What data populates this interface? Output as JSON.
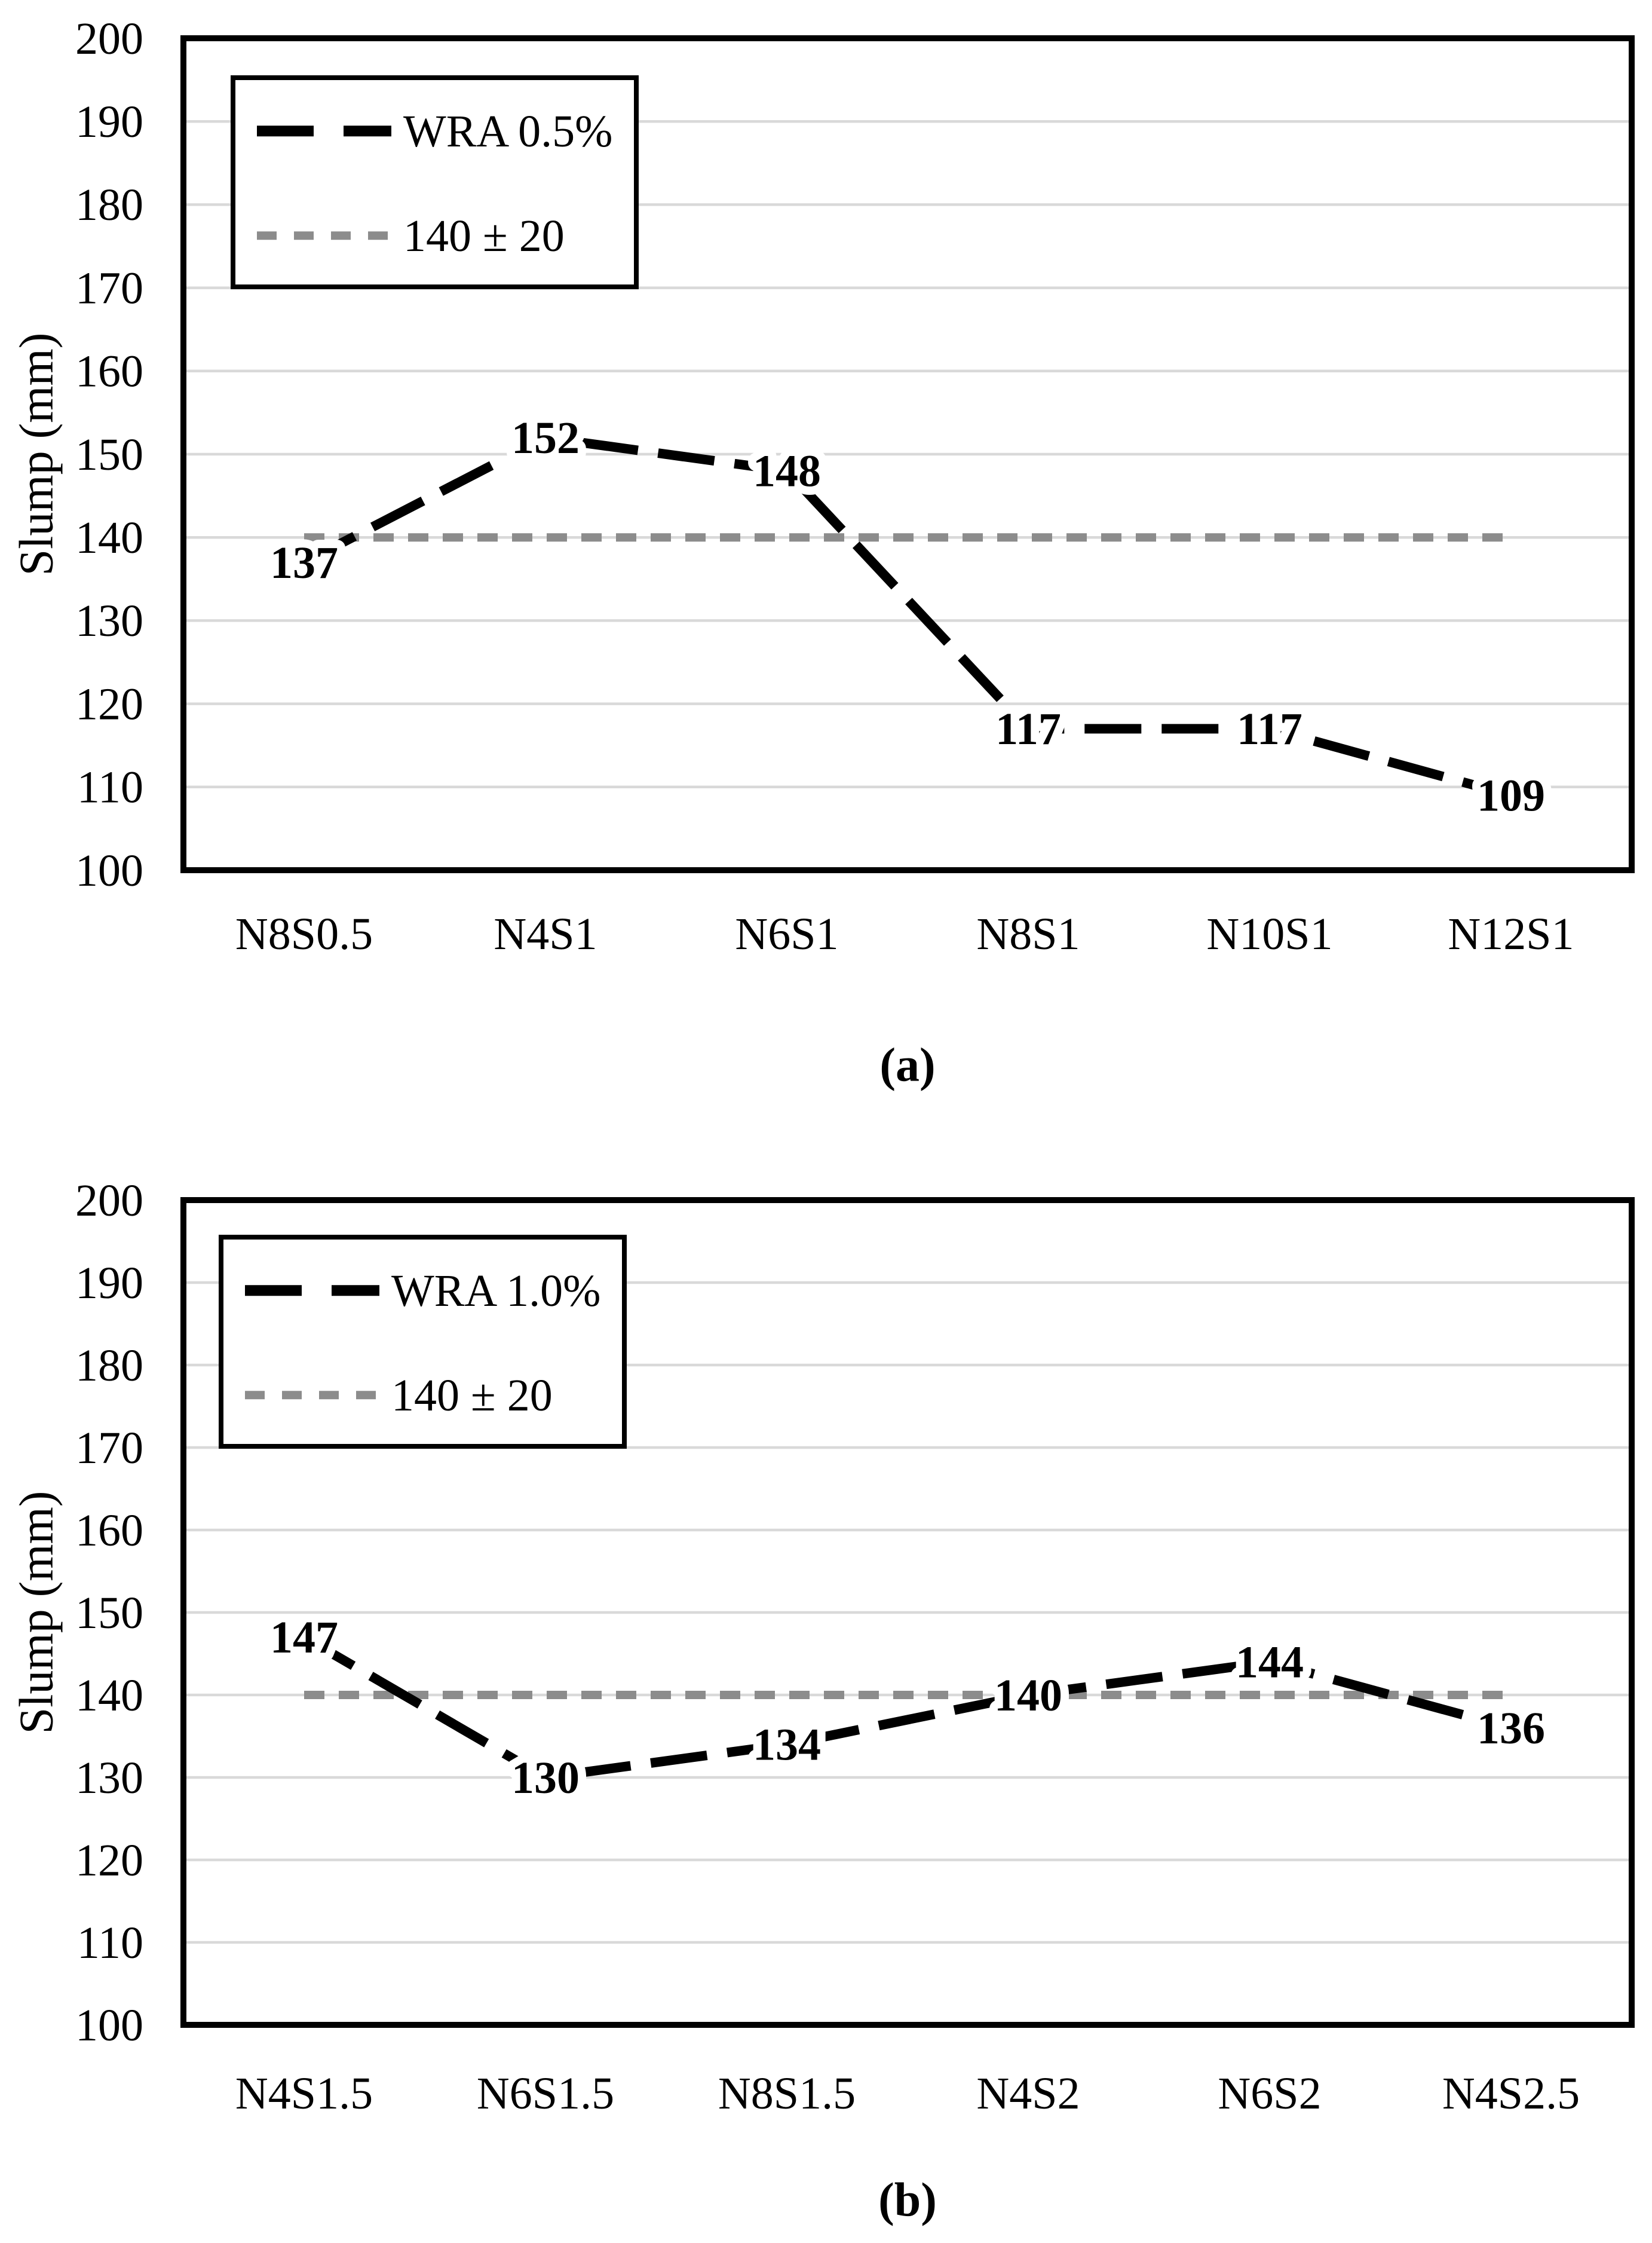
{
  "page": {
    "background": "#ffffff"
  },
  "colors": {
    "series": "#000000",
    "reference": "#8c8c8c",
    "gridline": "#d9d9d9",
    "frame": "#000000",
    "text": "#000000",
    "legend_background": "#ffffff"
  },
  "chart_data": [
    {
      "type": "line",
      "caption": "(a)",
      "ylabel": "Slump (mm)",
      "ylim": [
        100,
        200
      ],
      "tick_step": 10,
      "y_tick_labels": [
        "100",
        "110",
        "120",
        "130",
        "140",
        "150",
        "160",
        "170",
        "180",
        "190",
        "200"
      ],
      "categories": [
        "N8S0.5",
        "N4S1",
        "N6S1",
        "N8S1",
        "N10S1",
        "N12S1"
      ],
      "grid": true,
      "legend_position": "top-left",
      "legend_entries": [
        "WRA 0.5%",
        "140 ± 20"
      ],
      "series": [
        {
          "name": "WRA 0.5%",
          "kind": "data",
          "color": "#000000",
          "dash_style": "long-dash",
          "values": [
            137,
            152,
            148,
            117,
            117,
            109
          ],
          "data_labels": true
        },
        {
          "name": "140 ± 20",
          "kind": "reference",
          "color": "#8c8c8c",
          "dash_style": "short-dash",
          "values": [
            140,
            140,
            140,
            140,
            140,
            140
          ],
          "data_labels": false
        }
      ]
    },
    {
      "type": "line",
      "caption": "(b)",
      "ylabel": "Slump (mm)",
      "ylim": [
        100,
        200
      ],
      "tick_step": 10,
      "y_tick_labels": [
        "100",
        "110",
        "120",
        "130",
        "140",
        "150",
        "160",
        "170",
        "180",
        "190",
        "200"
      ],
      "categories": [
        "N4S1.5",
        "N6S1.5",
        "N8S1.5",
        "N4S2",
        "N6S2",
        "N4S2.5"
      ],
      "grid": true,
      "legend_position": "top-left",
      "legend_entries": [
        "WRA 1.0%",
        "140 ± 20"
      ],
      "series": [
        {
          "name": "WRA 1.0%",
          "kind": "data",
          "color": "#000000",
          "dash_style": "long-dash",
          "values": [
            147,
            130,
            134,
            140,
            144,
            136
          ],
          "data_labels": true
        },
        {
          "name": "140 ± 20",
          "kind": "reference",
          "color": "#8c8c8c",
          "dash_style": "short-dash",
          "values": [
            140,
            140,
            140,
            140,
            140,
            140
          ],
          "data_labels": false
        }
      ]
    }
  ]
}
